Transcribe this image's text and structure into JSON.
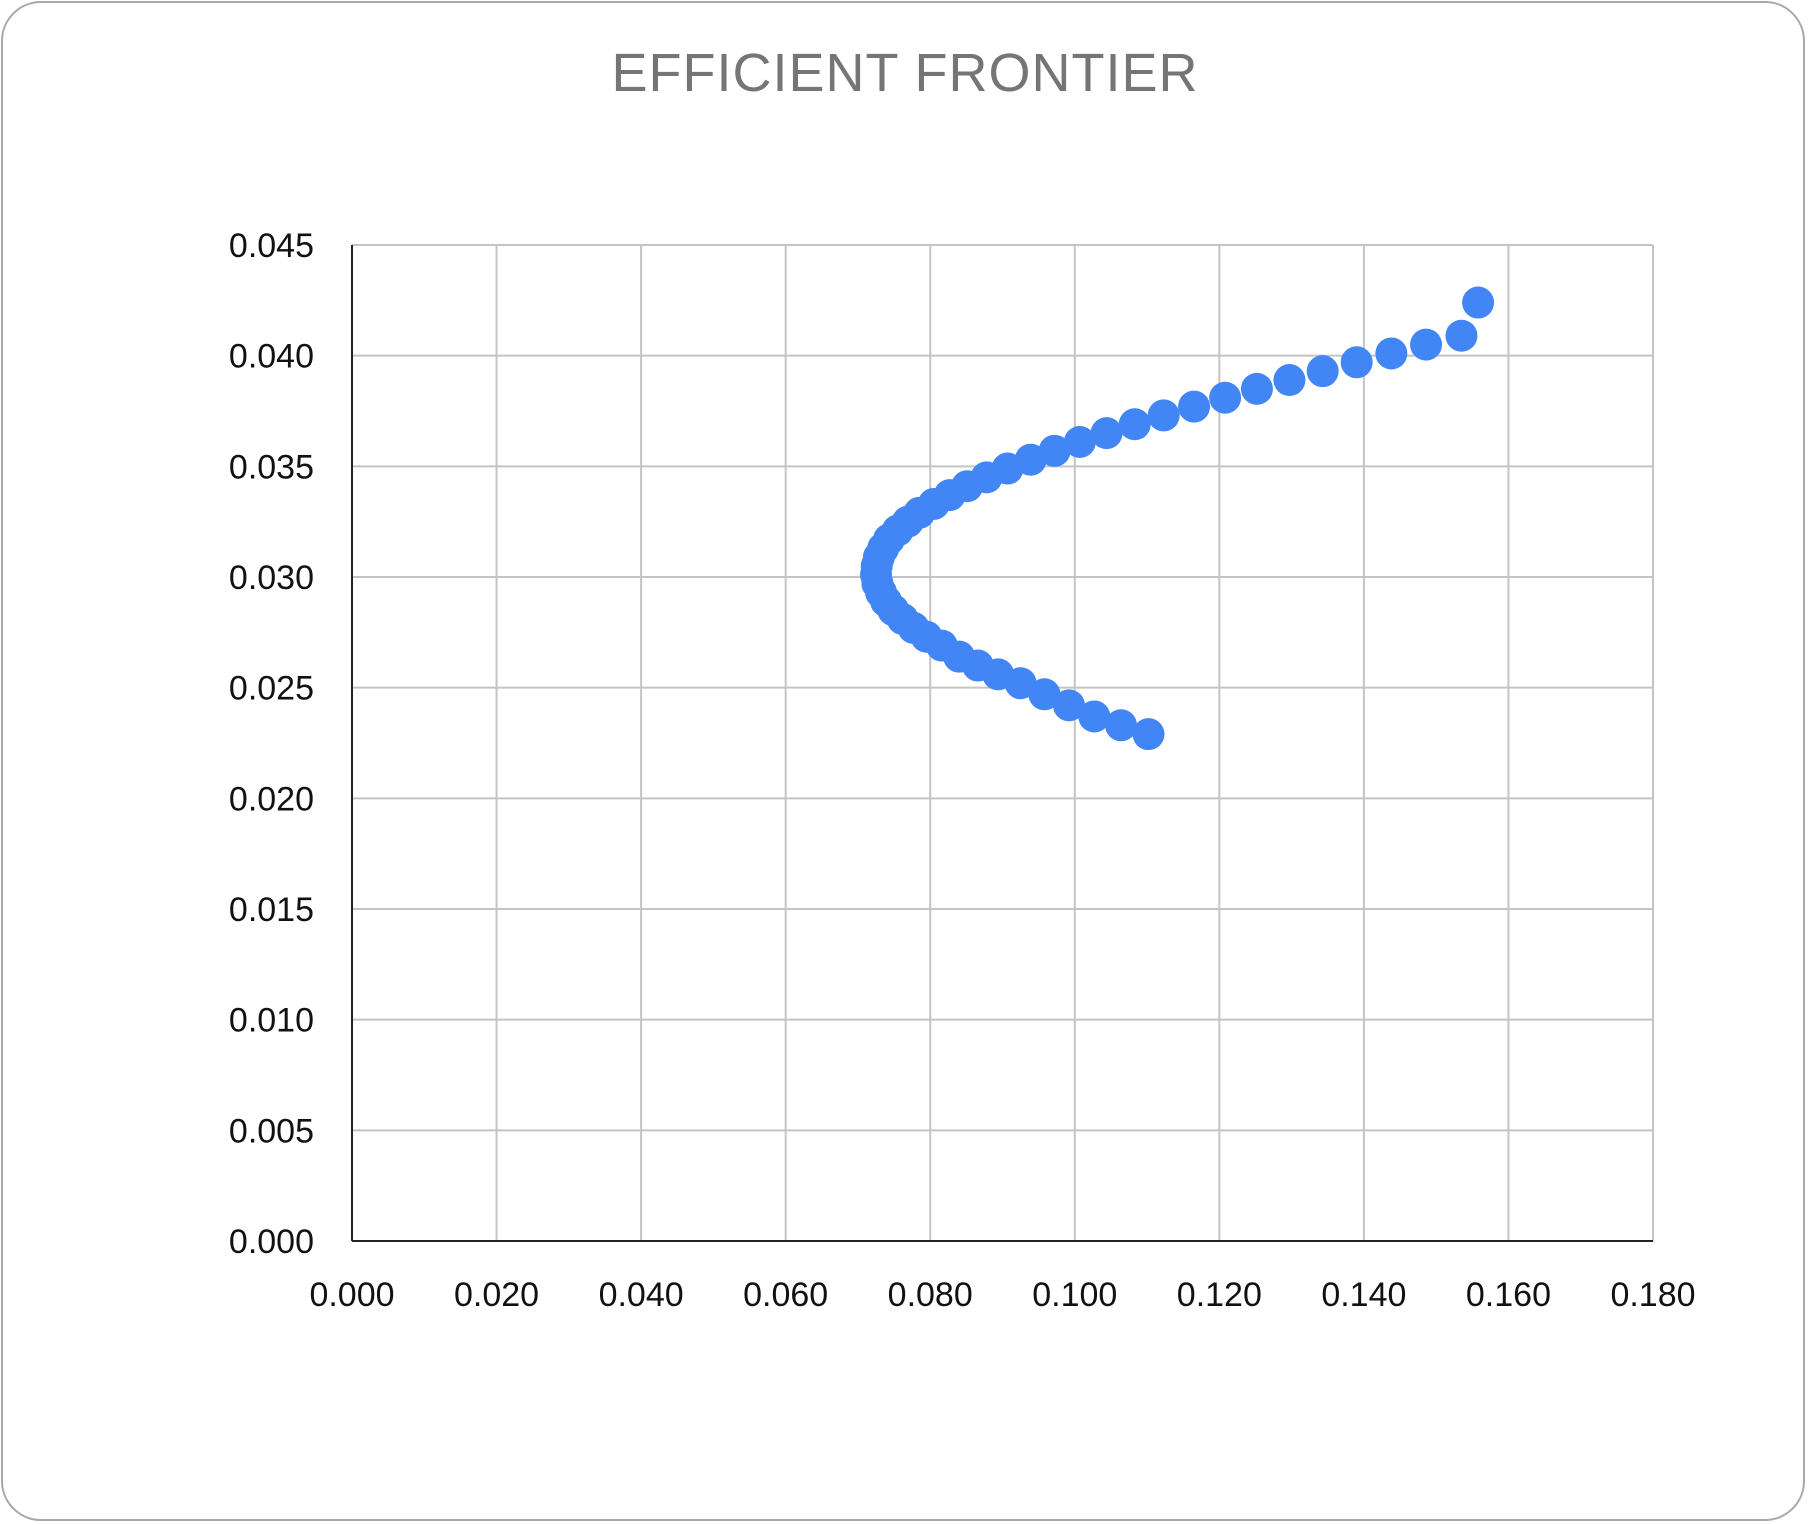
{
  "chart_data": {
    "type": "scatter",
    "title": "EFFICIENT FRONTIER",
    "xlabel": "",
    "ylabel": "",
    "xlim": [
      0,
      0.18
    ],
    "ylim": [
      0,
      0.045
    ],
    "x_ticks": [
      "0.000",
      "0.020",
      "0.040",
      "0.060",
      "0.080",
      "0.100",
      "0.120",
      "0.140",
      "0.160",
      "0.180"
    ],
    "y_ticks": [
      "0.000",
      "0.005",
      "0.010",
      "0.015",
      "0.020",
      "0.025",
      "0.030",
      "0.035",
      "0.040",
      "0.045"
    ],
    "grid": true,
    "legend": "none",
    "marker_color": "#4285F4",
    "series": [
      {
        "x": [
          0.1102,
          0.1064,
          0.1027,
          0.0992,
          0.0958,
          0.0925,
          0.0894,
          0.0866,
          0.084,
          0.0816,
          0.0795,
          0.0777,
          0.0762,
          0.0749,
          0.0739,
          0.0732,
          0.0727,
          0.0725,
          0.0726,
          0.0729,
          0.0735,
          0.0743,
          0.0755,
          0.0769,
          0.0785,
          0.0805,
          0.0827,
          0.0851,
          0.0878,
          0.0907,
          0.0939,
          0.0972,
          0.1007,
          0.1044,
          0.1083,
          0.1123,
          0.1165,
          0.1208,
          0.1252,
          0.1297,
          0.1343,
          0.139,
          0.1438,
          0.1486,
          0.1535,
          0.1558
        ],
        "y": [
          0.0229,
          0.0233,
          0.0237,
          0.0242,
          0.0247,
          0.0252,
          0.0256,
          0.026,
          0.0264,
          0.0269,
          0.0273,
          0.0277,
          0.0281,
          0.0285,
          0.0289,
          0.0293,
          0.0297,
          0.0301,
          0.0305,
          0.0309,
          0.0313,
          0.0317,
          0.0321,
          0.0325,
          0.0329,
          0.0333,
          0.0337,
          0.0341,
          0.0345,
          0.0349,
          0.0353,
          0.0357,
          0.0361,
          0.0365,
          0.0369,
          0.0373,
          0.0377,
          0.0381,
          0.0385,
          0.0389,
          0.0393,
          0.0397,
          0.0401,
          0.0405,
          0.0409,
          0.0424
        ]
      }
    ]
  }
}
